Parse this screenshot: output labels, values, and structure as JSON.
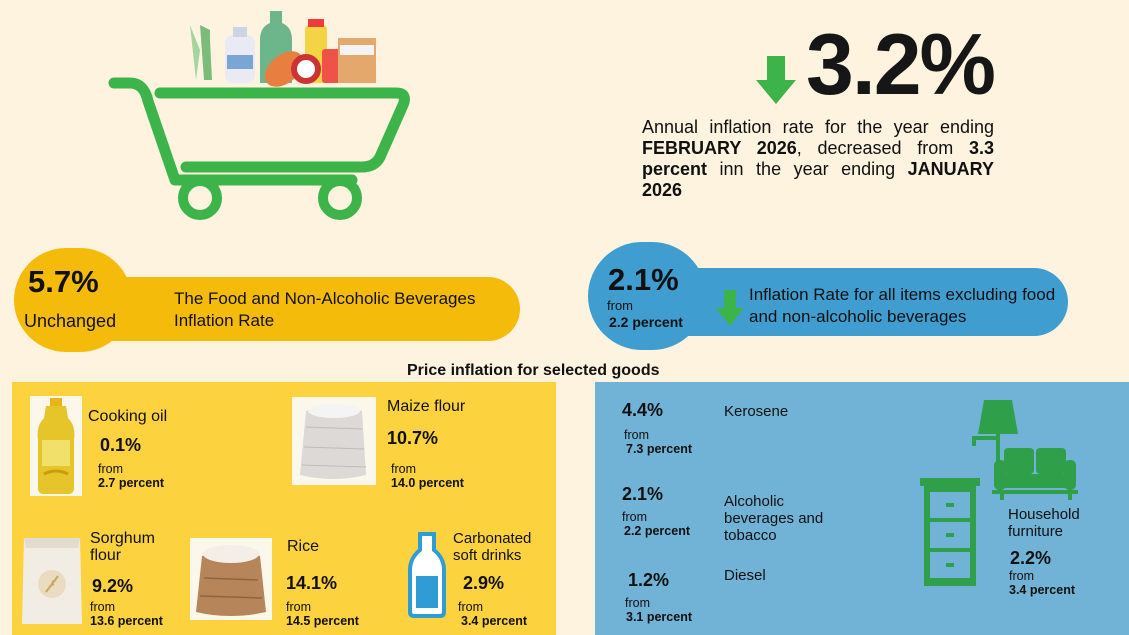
{
  "headline": {
    "value": "3.2%",
    "trend_icon": "arrow-down-icon",
    "desc_1": "Annual inflation rate for the year ending ",
    "month_1": "FEBRUARY 2026",
    "desc_2": ", decreased from ",
    "prev": "3.3 percent",
    "desc_3": " inn the year ending ",
    "month_2": "JANUARY 2026"
  },
  "food_banner": {
    "value": "5.7%",
    "note": "Unchanged",
    "label": "The Food and Non-Alcoholic Beverages Inflation Rate"
  },
  "nonfood_banner": {
    "value": "2.1%",
    "from": "from",
    "prev": "2.2 percent",
    "label": "Inflation Rate for all items excluding food and non-alcoholic beverages",
    "trend_icon": "arrow-down-icon"
  },
  "section_title": "Price inflation for selected goods",
  "food_items": {
    "cooking_oil": {
      "name": "Cooking oil",
      "value": "0.1%",
      "from": "from",
      "prev": "2.7 percent"
    },
    "maize_flour": {
      "name": "Maize flour",
      "value": "10.7%",
      "from": "from",
      "prev": "14.0 percent"
    },
    "sorghum_flour": {
      "name": "Sorghum flour",
      "value": "9.2%",
      "from": "from",
      "prev": "13.6 percent"
    },
    "rice": {
      "name": "Rice",
      "value": "14.1%",
      "from": "from",
      "prev": "14.5 percent"
    },
    "soft_drinks": {
      "name": "Carbonated soft drinks",
      "value": "2.9%",
      "from": "from",
      "prev": "3.4 percent"
    }
  },
  "nonfood_items": {
    "kerosene": {
      "name": "Kerosene",
      "value": "4.4%",
      "from": "from",
      "prev": "7.3 percent"
    },
    "alcohol": {
      "name": "Alcoholic beverages and tobacco",
      "value": "2.1%",
      "from": "from",
      "prev": "2.2 percent"
    },
    "diesel": {
      "name": "Diesel",
      "value": "1.2%",
      "from": "from",
      "prev": "3.1 percent"
    },
    "furniture": {
      "name": "Household furniture",
      "value": "2.2%",
      "from": "from",
      "prev": "3.4 percent"
    }
  },
  "colors": {
    "background": "#fdf3df",
    "green": "#3db44a",
    "yellow": "#f5bb0b",
    "blue": "#3f9dd0",
    "food_panel": "#fdd23f",
    "nonfood_panel": "#71b3d6"
  }
}
